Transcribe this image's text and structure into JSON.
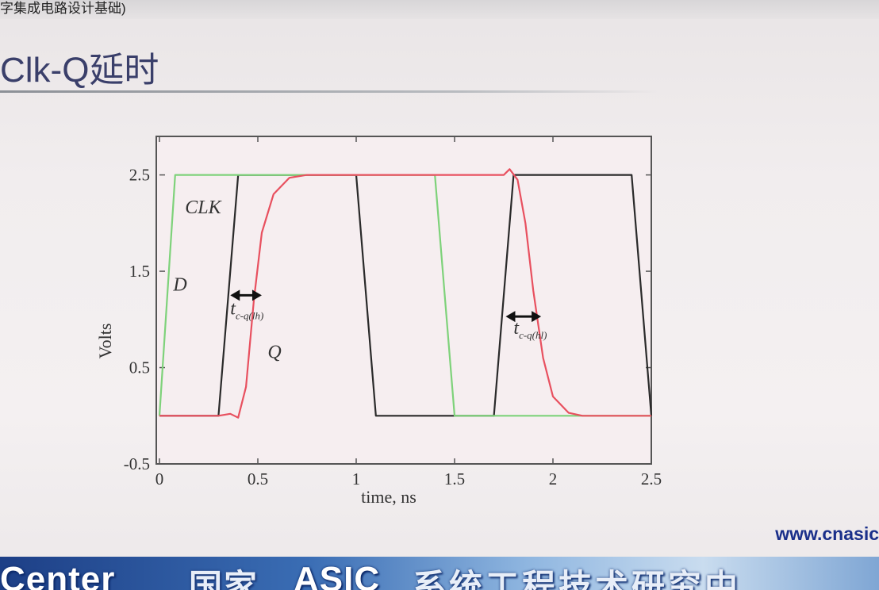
{
  "header": {
    "caption": "字集成电路设计基础)",
    "slide_title": "Clk-Q延时"
  },
  "footer": {
    "website": "www.cnasic",
    "banner_en": "Center",
    "banner_cn_1": "国家",
    "banner_en_2": "ASIC",
    "banner_cn_2": "系统工程技术研究中"
  },
  "colors": {
    "clk": "#2a2a2a",
    "d": "#7ed27a",
    "q": "#e8505f",
    "axes": "#555555",
    "plot_bg": "#f6eef0"
  },
  "chart_data": {
    "type": "line",
    "title": "",
    "xlabel": "time, ns",
    "ylabel": "Volts",
    "xlim": [
      0,
      2.5
    ],
    "ylim": [
      -0.5,
      2.9
    ],
    "xticks": [
      0,
      0.5,
      1,
      1.5,
      2,
      2.5
    ],
    "xtick_labels": [
      "0",
      "0.5",
      "1",
      "1.5",
      "2",
      "2.5"
    ],
    "yticks": [
      -0.5,
      0.5,
      1.5,
      2.5
    ],
    "ytick_labels": [
      "-0.5",
      "0.5",
      "1.5",
      "2.5"
    ],
    "grid": false,
    "legend": "none",
    "series": [
      {
        "name": "CLK",
        "color": "#2a2a2a",
        "points": [
          [
            0,
            0
          ],
          [
            0.3,
            0
          ],
          [
            0.4,
            2.5
          ],
          [
            1.0,
            2.5
          ],
          [
            1.1,
            0
          ],
          [
            1.7,
            0
          ],
          [
            1.8,
            2.5
          ],
          [
            2.4,
            2.5
          ],
          [
            2.5,
            0
          ]
        ]
      },
      {
        "name": "D",
        "color": "#7ed27a",
        "points": [
          [
            0,
            0
          ],
          [
            0.08,
            2.5
          ],
          [
            1.4,
            2.5
          ],
          [
            1.5,
            0
          ],
          [
            2.5,
            0
          ]
        ]
      },
      {
        "name": "Q",
        "color": "#e8505f",
        "points": [
          [
            0,
            0
          ],
          [
            0.3,
            0
          ],
          [
            0.36,
            0.02
          ],
          [
            0.4,
            -0.02
          ],
          [
            0.44,
            0.3
          ],
          [
            0.48,
            1.2
          ],
          [
            0.52,
            1.9
          ],
          [
            0.58,
            2.3
          ],
          [
            0.66,
            2.47
          ],
          [
            0.75,
            2.5
          ],
          [
            1.75,
            2.5
          ],
          [
            1.78,
            2.56
          ],
          [
            1.82,
            2.45
          ],
          [
            1.86,
            2.0
          ],
          [
            1.9,
            1.3
          ],
          [
            1.95,
            0.6
          ],
          [
            2.0,
            0.2
          ],
          [
            2.08,
            0.03
          ],
          [
            2.15,
            0
          ],
          [
            2.5,
            0
          ]
        ]
      }
    ],
    "annotations": [
      {
        "text": "CLK",
        "x": 0.13,
        "y": 2.1,
        "style": "italic"
      },
      {
        "text": "D",
        "x": 0.07,
        "y": 1.3,
        "style": "italic"
      },
      {
        "text": "Q",
        "x": 0.55,
        "y": 0.6,
        "style": "italic"
      },
      {
        "text": "t",
        "sub": "c-q(lh)",
        "x": 0.36,
        "y": 1.05
      },
      {
        "text": "t",
        "sub": "c-q(hl)",
        "x": 1.8,
        "y": 0.85
      }
    ],
    "arrows": [
      {
        "name": "tcq-lh-arrow",
        "x1": 0.36,
        "x2": 0.52,
        "y": 1.25
      },
      {
        "name": "tcq-hl-arrow",
        "x1": 1.76,
        "x2": 1.94,
        "y": 1.03
      }
    ]
  }
}
